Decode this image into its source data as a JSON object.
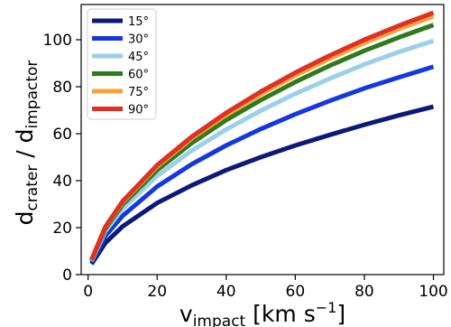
{
  "chart_data": {
    "type": "line",
    "title": "",
    "xlabel": {
      "main": "v",
      "sub": "impact",
      "rest": " [km s",
      "sup": "−1",
      "close": "]"
    },
    "ylabel": {
      "p1": "d",
      "s1": "crater",
      "mid": " / d",
      "s2": "impactor"
    },
    "xlim": [
      -2,
      103
    ],
    "ylim": [
      0,
      115
    ],
    "xticks": [
      0,
      20,
      40,
      60,
      80,
      100
    ],
    "yticks": [
      0,
      20,
      40,
      60,
      80,
      100
    ],
    "xtick_labels": [
      "0",
      "20",
      "40",
      "60",
      "80",
      "100"
    ],
    "ytick_labels": [
      "0",
      "20",
      "40",
      "60",
      "80",
      "100"
    ],
    "grid": false,
    "legend_position": "top-left",
    "x": [
      1,
      5,
      10,
      20,
      30,
      40,
      50,
      60,
      70,
      80,
      90,
      100
    ],
    "series": [
      {
        "name": "15°",
        "color": "#0b1a7a",
        "values": [
          4.5,
          13.5,
          20.5,
          30.5,
          38.0,
          44.5,
          50.0,
          55.0,
          59.5,
          63.8,
          67.8,
          71.5
        ]
      },
      {
        "name": "30°",
        "color": "#1537e0",
        "values": [
          5.2,
          16.5,
          25.0,
          37.5,
          47.0,
          55.0,
          62.0,
          68.3,
          74.0,
          79.3,
          84.0,
          88.5
        ]
      },
      {
        "name": "45°",
        "color": "#9ccfea",
        "values": [
          5.8,
          18.5,
          28.0,
          42.0,
          52.8,
          61.8,
          69.8,
          77.0,
          83.5,
          89.5,
          94.8,
          99.5
        ]
      },
      {
        "name": "60°",
        "color": "#2e7a1c",
        "values": [
          6.1,
          19.5,
          29.8,
          44.5,
          56.0,
          65.8,
          74.3,
          82.0,
          89.0,
          95.3,
          101.0,
          106.3
        ]
      },
      {
        "name": "75°",
        "color": "#f5a23a",
        "values": [
          6.3,
          20.2,
          30.8,
          46.0,
          58.0,
          68.0,
          76.8,
          84.8,
          92.0,
          98.6,
          104.6,
          110.0
        ]
      },
      {
        "name": "90°",
        "color": "#e03024",
        "values": [
          6.4,
          20.4,
          31.2,
          46.6,
          58.7,
          68.9,
          77.9,
          86.0,
          93.3,
          100.0,
          106.0,
          111.5
        ]
      }
    ]
  }
}
